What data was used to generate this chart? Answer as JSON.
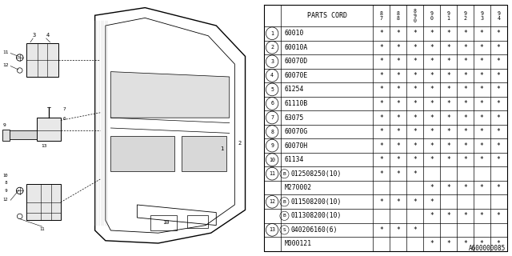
{
  "bg_color": "#ffffff",
  "line_color": "#000000",
  "rows": [
    {
      "num": "1",
      "code": "60010",
      "stars": [
        1,
        1,
        1,
        1,
        1,
        1,
        1,
        1
      ]
    },
    {
      "num": "2",
      "code": "60010A",
      "stars": [
        1,
        1,
        1,
        1,
        1,
        1,
        1,
        1
      ]
    },
    {
      "num": "3",
      "code": "60070D",
      "stars": [
        1,
        1,
        1,
        1,
        1,
        1,
        1,
        1
      ]
    },
    {
      "num": "4",
      "code": "60070E",
      "stars": [
        1,
        1,
        1,
        1,
        1,
        1,
        1,
        1
      ]
    },
    {
      "num": "5",
      "code": "61254",
      "stars": [
        1,
        1,
        1,
        1,
        1,
        1,
        1,
        1
      ]
    },
    {
      "num": "6",
      "code": "61110B",
      "stars": [
        1,
        1,
        1,
        1,
        1,
        1,
        1,
        1
      ]
    },
    {
      "num": "7",
      "code": "63075",
      "stars": [
        1,
        1,
        1,
        1,
        1,
        1,
        1,
        1
      ]
    },
    {
      "num": "8",
      "code": "60070G",
      "stars": [
        1,
        1,
        1,
        1,
        1,
        1,
        1,
        1
      ]
    },
    {
      "num": "9",
      "code": "60070H",
      "stars": [
        1,
        1,
        1,
        1,
        1,
        1,
        1,
        1
      ]
    },
    {
      "num": "10",
      "code": "61134",
      "stars": [
        1,
        1,
        1,
        1,
        1,
        1,
        1,
        1
      ]
    },
    {
      "num": "11",
      "code": "B012508250(10)",
      "stars": [
        1,
        1,
        1,
        0,
        0,
        0,
        0,
        0
      ],
      "prefix": "B"
    },
    {
      "num": "",
      "code": "M270002",
      "stars": [
        0,
        0,
        0,
        1,
        1,
        1,
        1,
        1
      ]
    },
    {
      "num": "12",
      "code": "B011508200(10)",
      "stars": [
        1,
        1,
        1,
        1,
        0,
        0,
        0,
        0
      ],
      "prefix": "B"
    },
    {
      "num": "",
      "code": "B011308200(10)",
      "stars": [
        0,
        0,
        0,
        1,
        1,
        1,
        1,
        1
      ],
      "prefix": "B"
    },
    {
      "num": "13",
      "code": "S040206160(6)",
      "stars": [
        1,
        1,
        1,
        0,
        0,
        0,
        0,
        0
      ],
      "prefix": "S"
    },
    {
      "num": "",
      "code": "M000121",
      "stars": [
        0,
        0,
        0,
        1,
        1,
        1,
        1,
        1
      ]
    }
  ],
  "year_headers": [
    "8\n7",
    "8\n8",
    "8\n9\n0",
    "9\n0",
    "9\n1",
    "9\n2",
    "9\n3",
    "9\n4"
  ],
  "footer": "A600000085"
}
